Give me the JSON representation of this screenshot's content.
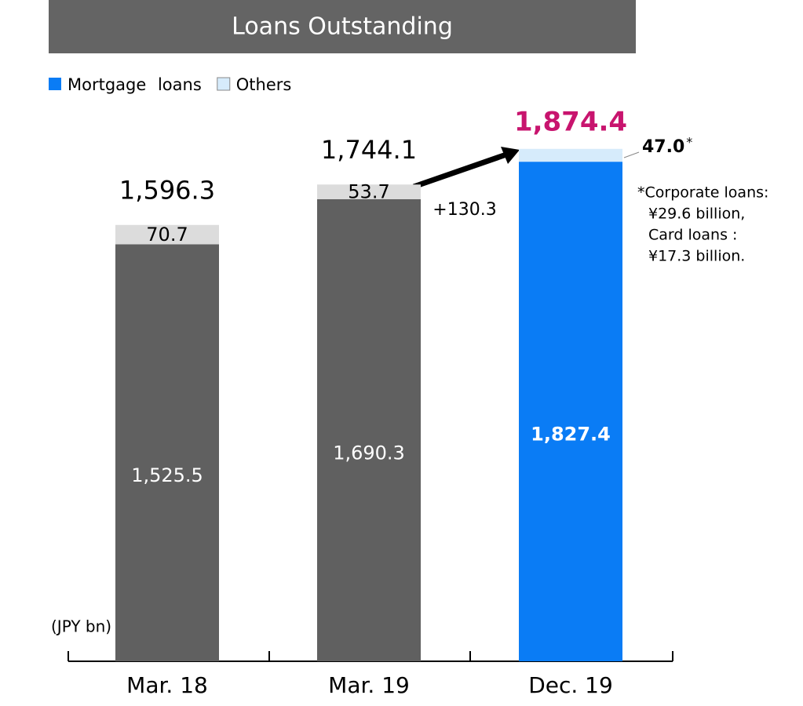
{
  "chart_data": {
    "type": "stacked_bar",
    "title": "Loans Outstanding",
    "categories": [
      "Mar. 18",
      "Mar. 19",
      "Dec. 19"
    ],
    "series": [
      {
        "name": "Mortgage loans",
        "color": "#0a7cf5",
        "bar_colors": [
          "#606060",
          "#606060",
          "#0a7cf5"
        ],
        "values": [
          1525.5,
          1690.3,
          1827.4
        ],
        "value_labels": [
          "1,525.5",
          "1,690.3",
          "1,827.4"
        ]
      },
      {
        "name": "Others",
        "color": "#d6ebfb",
        "bar_colors": [
          "#dcdcdc",
          "#dcdcdc",
          "#d6ebfb"
        ],
        "values": [
          70.7,
          53.7,
          47.0
        ],
        "value_labels": [
          "70.7",
          "53.7",
          "47.0"
        ]
      }
    ],
    "totals": [
      1596.3,
      1744.1,
      1874.4
    ],
    "total_labels": [
      "1,596.3",
      "1,744.1",
      "1,874.4"
    ],
    "highlight_color": "#c8146e",
    "ylim": [
      0,
      2000
    ],
    "annotations": {
      "increase": "+130.3",
      "unit": "(JPY bn)",
      "note_mark": "*",
      "footnote": [
        "*Corporate loans:",
        "¥29.6 billion,",
        "Card loans :",
        "¥17.3 billion."
      ]
    }
  }
}
